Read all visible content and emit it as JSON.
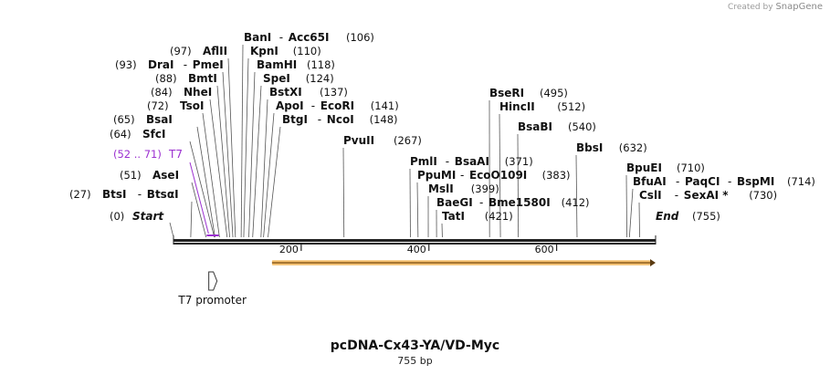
{
  "credit": {
    "created_by": "Created by",
    "brand": "SnapGene"
  },
  "title": "pcDNA-Cx43-YA/VD-Myc",
  "length_label": "755 bp",
  "backbone": {
    "start_label": "Start",
    "start_pos": "(0)",
    "end_label": "End",
    "end_pos": "(755)",
    "total": 755
  },
  "ruler": [
    {
      "value": 200,
      "label": "200"
    },
    {
      "value": 400,
      "label": "400"
    },
    {
      "value": 600,
      "label": "600"
    }
  ],
  "feature_t7": {
    "label": "T7",
    "range": "(52 .. 71)",
    "start": 52,
    "end": 71,
    "color": "#9b30d0"
  },
  "promoter": {
    "label": "T7 promoter",
    "position": 61
  },
  "orf_arrow": {
    "start": 150,
    "end": 755,
    "color": "#f2a93b"
  },
  "sites": [
    {
      "pos_label": "(27)",
      "parts": [
        "BtsI",
        "BtsαI"
      ],
      "position": 27
    },
    {
      "pos_label": "(51)",
      "parts": [
        "AseI"
      ],
      "position": 51
    },
    {
      "pos_label": "(64)",
      "parts": [
        "SfcI"
      ],
      "position": 64
    },
    {
      "pos_label": "(65)",
      "parts": [
        "BsaI"
      ],
      "position": 65
    },
    {
      "pos_label": "(72)",
      "parts": [
        "TsoI"
      ],
      "position": 72
    },
    {
      "pos_label": "(84)",
      "parts": [
        "NheI"
      ],
      "position": 84
    },
    {
      "pos_label": "(88)",
      "parts": [
        "BmtI"
      ],
      "position": 88
    },
    {
      "pos_label": "(93)",
      "parts": [
        "DraI",
        "PmeI"
      ],
      "position": 93
    },
    {
      "pos_label": "(97)",
      "parts": [
        "AflII"
      ],
      "position": 97
    },
    {
      "pos_label": "(106)",
      "parts": [
        "BanI",
        "Acc65I"
      ],
      "position": 106
    },
    {
      "pos_label": "(110)",
      "parts": [
        "KpnI"
      ],
      "position": 110
    },
    {
      "pos_label": "(118)",
      "parts": [
        "BamHI"
      ],
      "position": 118
    },
    {
      "pos_label": "(124)",
      "parts": [
        "SpeI"
      ],
      "position": 124
    },
    {
      "pos_label": "(137)",
      "parts": [
        "BstXI"
      ],
      "position": 137
    },
    {
      "pos_label": "(141)",
      "parts": [
        "ApoI",
        "EcoRI"
      ],
      "position": 141
    },
    {
      "pos_label": "(148)",
      "parts": [
        "BtgI",
        "NcoI"
      ],
      "position": 148
    },
    {
      "pos_label": "(267)",
      "parts": [
        "PvuII"
      ],
      "position": 267
    },
    {
      "pos_label": "(371)",
      "parts": [
        "PmlI",
        "BsaAI"
      ],
      "position": 371
    },
    {
      "pos_label": "(383)",
      "parts": [
        "PpuMI",
        "EcoO109I"
      ],
      "position": 383
    },
    {
      "pos_label": "(399)",
      "parts": [
        "MslI"
      ],
      "position": 399
    },
    {
      "pos_label": "(412)",
      "parts": [
        "BaeGI",
        "Bme1580I"
      ],
      "position": 412
    },
    {
      "pos_label": "(421)",
      "parts": [
        "TatI"
      ],
      "position": 421
    },
    {
      "pos_label": "(495)",
      "parts": [
        "BseRI"
      ],
      "position": 495
    },
    {
      "pos_label": "(512)",
      "parts": [
        "HincII"
      ],
      "position": 512
    },
    {
      "pos_label": "(540)",
      "parts": [
        "BsaBI"
      ],
      "position": 540
    },
    {
      "pos_label": "(632)",
      "parts": [
        "BbsI"
      ],
      "position": 632
    },
    {
      "pos_label": "(710)",
      "parts": [
        "BpuEI"
      ],
      "position": 710
    },
    {
      "pos_label": "(714)",
      "parts": [
        "BfuAI",
        "PaqCI",
        "BspMI"
      ],
      "position": 714
    },
    {
      "pos_label": "(730)",
      "parts": [
        "CslI",
        "SexAI *"
      ],
      "position": 730
    }
  ]
}
